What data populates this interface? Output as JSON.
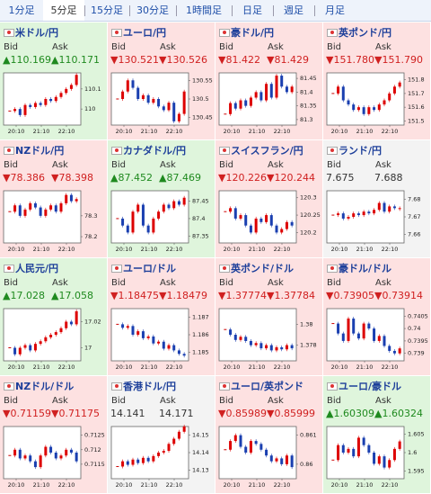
{
  "tabs": {
    "items": [
      "1分足",
      "5分足",
      "15分足",
      "30分足",
      "1時間足",
      "日足",
      "週足",
      "月足"
    ],
    "selected": 1
  },
  "labels": {
    "bid": "Bid",
    "ask": "Ask"
  },
  "panels": [
    {
      "name": "米ドル/円",
      "bid": "▲110.169",
      "ask": "▲110.171",
      "trend": "up",
      "yticks": [
        110.1,
        110
      ],
      "ylim": [
        109.92,
        110.18
      ],
      "xticks": [
        "20:10",
        "21:10",
        "22:10"
      ],
      "closes": [
        109.99,
        110.0,
        109.97,
        110.02,
        110.01,
        110.03,
        110.02,
        110.05,
        110.04,
        110.06,
        110.08,
        110.1,
        110.12,
        110.17
      ]
    },
    {
      "name": "ユーロ/円",
      "bid": "▼130.521",
      "ask": "▼130.526",
      "trend": "down",
      "yticks": [
        130.55,
        130.5,
        130.45
      ],
      "ylim": [
        130.43,
        130.57
      ],
      "xticks": [
        "20:10",
        "21:10",
        "22:10"
      ],
      "closes": [
        130.5,
        130.52,
        130.55,
        130.53,
        130.5,
        130.51,
        130.49,
        130.5,
        130.48,
        130.47,
        130.49,
        130.44,
        130.46,
        130.52
      ]
    },
    {
      "name": "豪ドル/円",
      "bid": "▼81.422",
      "ask": "▼81.429",
      "trend": "down",
      "yticks": [
        81.45,
        81.4,
        81.35,
        81.3
      ],
      "ylim": [
        81.28,
        81.47
      ],
      "xticks": [
        "20:10",
        "21:10",
        "22:10"
      ],
      "closes": [
        81.32,
        81.36,
        81.34,
        81.37,
        81.35,
        81.38,
        81.4,
        81.37,
        81.43,
        81.38,
        81.46,
        81.42,
        81.4,
        81.42
      ]
    },
    {
      "name": "英ポンド/円",
      "bid": "▼151.780",
      "ask": "▼151.790",
      "trend": "down",
      "yticks": [
        151.8,
        151.7,
        151.6,
        151.5
      ],
      "ylim": [
        151.47,
        151.85
      ],
      "xticks": [
        "20:10",
        "21:10",
        "22:10"
      ],
      "closes": [
        151.7,
        151.75,
        151.65,
        151.62,
        151.58,
        151.6,
        151.55,
        151.6,
        151.58,
        151.62,
        151.65,
        151.7,
        151.75,
        151.78
      ]
    },
    {
      "name": "NZドル/円",
      "bid": "▼78.386",
      "ask": "▼78.398",
      "trend": "down",
      "yticks": [
        78.3,
        78.2
      ],
      "ylim": [
        78.17,
        78.42
      ],
      "xticks": [
        "20:10",
        "21:10",
        "22:10"
      ],
      "closes": [
        78.32,
        78.35,
        78.3,
        78.33,
        78.36,
        78.34,
        78.3,
        78.33,
        78.35,
        78.32,
        78.36,
        78.4,
        78.37,
        78.38
      ]
    },
    {
      "name": "カナダドル/円",
      "bid": "▲87.452",
      "ask": "▲87.469",
      "trend": "up",
      "yticks": [
        87.45,
        87.4,
        87.35
      ],
      "ylim": [
        87.33,
        87.48
      ],
      "xticks": [
        "20:10",
        "21:10",
        "22:10"
      ],
      "closes": [
        87.4,
        87.38,
        87.36,
        87.42,
        87.44,
        87.38,
        87.36,
        87.4,
        87.42,
        87.44,
        87.43,
        87.45,
        87.44,
        87.46
      ]
    },
    {
      "name": "スイスフラン/円",
      "bid": "▼120.226",
      "ask": "▼120.244",
      "trend": "down",
      "yticks": [
        120.3,
        120.25,
        120.2
      ],
      "ylim": [
        120.17,
        120.32
      ],
      "xticks": [
        "20:10",
        "21:10",
        "22:10"
      ],
      "closes": [
        120.26,
        120.27,
        120.24,
        120.25,
        120.22,
        120.2,
        120.24,
        120.23,
        120.25,
        120.22,
        120.2,
        120.21,
        120.23,
        120.22
      ]
    },
    {
      "name": "ランド/円",
      "bid": "7.675",
      "ask": "7.688",
      "trend": "flat",
      "yticks": [
        7.68,
        7.67,
        7.66
      ],
      "ylim": [
        7.655,
        7.685
      ],
      "xticks": [
        "20:10",
        "21:10",
        "22:10"
      ],
      "closes": [
        7.671,
        7.672,
        7.669,
        7.67,
        7.672,
        7.671,
        7.673,
        7.672,
        7.674,
        7.678,
        7.673,
        7.676,
        7.675,
        7.675
      ]
    },
    {
      "name": "人民元/円",
      "bid": "▲17.028",
      "ask": "▲17.058",
      "trend": "up",
      "yticks": [
        17.02,
        17
      ],
      "ylim": [
        16.99,
        17.03
      ],
      "xticks": [
        "20:10",
        "21:10",
        "22:10"
      ],
      "closes": [
        17.0,
        16.995,
        17.0,
        17.002,
        16.998,
        17.003,
        17.005,
        17.008,
        17.01,
        17.012,
        17.015,
        17.02,
        17.018,
        17.028
      ]
    },
    {
      "name": "ユーロ/ドル",
      "bid": "▼1.18475",
      "ask": "▼1.18479",
      "trend": "down",
      "yticks": [
        1.187,
        1.186,
        1.185
      ],
      "ylim": [
        1.1845,
        1.1875
      ],
      "xticks": [
        "20:10",
        "21:10",
        "22:10"
      ],
      "closes": [
        1.1866,
        1.1864,
        1.1865,
        1.186,
        1.1862,
        1.1858,
        1.1859,
        1.1855,
        1.1856,
        1.1852,
        1.1854,
        1.1851,
        1.1849,
        1.1848
      ]
    },
    {
      "name": "英ポンド/ドル",
      "bid": "▼1.37774",
      "ask": "▼1.37784",
      "trend": "down",
      "yticks": [
        1.38,
        1.378
      ],
      "ylim": [
        1.3765,
        1.3815
      ],
      "xticks": [
        "20:10",
        "21:10",
        "22:10"
      ],
      "closes": [
        1.3795,
        1.379,
        1.3785,
        1.3788,
        1.3784,
        1.378,
        1.3782,
        1.3777,
        1.378,
        1.3775,
        1.3778,
        1.3776,
        1.378,
        1.3777
      ]
    },
    {
      "name": "豪ドル/ドル",
      "bid": "▼0.73905",
      "ask": "▼0.73914",
      "trend": "down",
      "yticks": [
        0.7405,
        0.74,
        0.7395,
        0.739
      ],
      "ylim": [
        0.7387,
        0.7408
      ],
      "xticks": [
        "20:10",
        "21:10",
        "22:10"
      ],
      "closes": [
        0.7402,
        0.7398,
        0.7395,
        0.7404,
        0.7398,
        0.7396,
        0.7402,
        0.74,
        0.7395,
        0.7397,
        0.7393,
        0.7391,
        0.739,
        0.7392
      ]
    },
    {
      "name": "NZドル/ドル",
      "bid": "▼0.71159",
      "ask": "▼0.71175",
      "trend": "down",
      "yticks": [
        0.7125,
        0.712,
        0.7115
      ],
      "ylim": [
        0.711,
        0.7128
      ],
      "xticks": [
        "20:10",
        "21:10",
        "22:10"
      ],
      "closes": [
        0.7118,
        0.712,
        0.7117,
        0.7118,
        0.7116,
        0.7114,
        0.7118,
        0.7121,
        0.7119,
        0.7117,
        0.7118,
        0.712,
        0.7119,
        0.7116
      ]
    },
    {
      "name": "香港ドル/円",
      "bid": "14.141",
      "ask": "14.171",
      "trend": "flat",
      "yticks": [
        14.15,
        14.14,
        14.13
      ],
      "ylim": [
        14.125,
        14.155
      ],
      "xticks": [
        "20:10",
        "21:10",
        "22:10"
      ],
      "closes": [
        14.132,
        14.135,
        14.133,
        14.136,
        14.134,
        14.137,
        14.135,
        14.138,
        14.14,
        14.141,
        14.145,
        14.148,
        14.152,
        14.155
      ]
    },
    {
      "name": "ユーロ/英ポンド",
      "bid": "▼0.85989",
      "ask": "▼0.85999",
      "trend": "down",
      "yticks": [
        0.861,
        0.86
      ],
      "ylim": [
        0.8595,
        0.8613
      ],
      "xticks": [
        "20:10",
        "21:10",
        "22:10"
      ],
      "closes": [
        0.8605,
        0.8608,
        0.861,
        0.8606,
        0.8604,
        0.8608,
        0.8607,
        0.8605,
        0.8603,
        0.8601,
        0.8602,
        0.86,
        0.8603,
        0.8599
      ]
    },
    {
      "name": "ユーロ/豪ドル",
      "bid": "▲1.60309",
      "ask": "▲1.60324",
      "trend": "up",
      "yticks": [
        1.605,
        1.6,
        1.595
      ],
      "ylim": [
        1.593,
        1.607
      ],
      "xticks": [
        "20:10",
        "21:10",
        "22:10"
      ],
      "closes": [
        1.598,
        1.602,
        1.6,
        1.601,
        1.599,
        1.604,
        1.602,
        1.6,
        1.597,
        1.599,
        1.596,
        1.598,
        1.601,
        1.603
      ]
    }
  ]
}
